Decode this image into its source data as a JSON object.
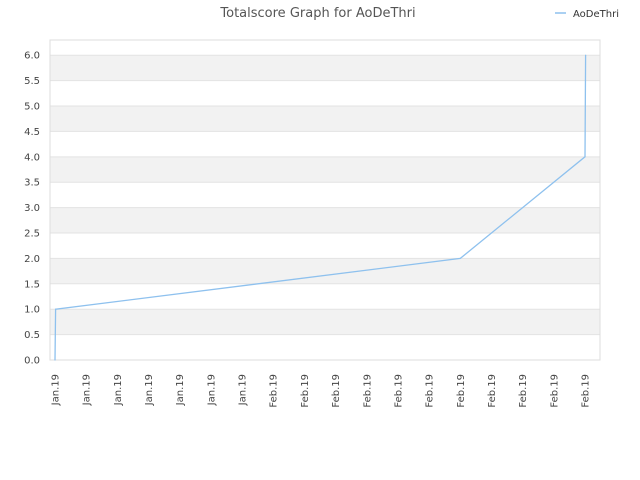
{
  "chart_data": {
    "type": "line",
    "title": "Totalscore Graph for AoDeThri",
    "xlabel": "",
    "ylabel": "",
    "ylim": [
      0,
      6.3
    ],
    "yticks": [
      "0.0",
      "0.5",
      "1.0",
      "1.5",
      "2.0",
      "2.5",
      "3.0",
      "3.5",
      "4.0",
      "4.5",
      "5.0",
      "5.5",
      "6.0"
    ],
    "xticks": [
      "Jan.19",
      "Jan.19",
      "Jan.19",
      "Jan.19",
      "Jan.19",
      "Jan.19",
      "Jan.19",
      "Feb.19",
      "Feb.19",
      "Feb.19",
      "Feb.19",
      "Feb.19",
      "Feb.19",
      "Feb.19",
      "Feb.19",
      "Feb.19",
      "Feb.19",
      "Feb.19"
    ],
    "grid": "horizontal alternating bands",
    "legend_position": "top-right",
    "series": [
      {
        "name": "AoDeThri",
        "color": "#8ec1ee",
        "points": [
          {
            "x": 0.0,
            "y": 0
          },
          {
            "x": 0.02,
            "y": 1
          },
          {
            "x": 13.0,
            "y": 2
          },
          {
            "x": 17.0,
            "y": 4
          },
          {
            "x": 17.02,
            "y": 6
          }
        ]
      }
    ]
  }
}
